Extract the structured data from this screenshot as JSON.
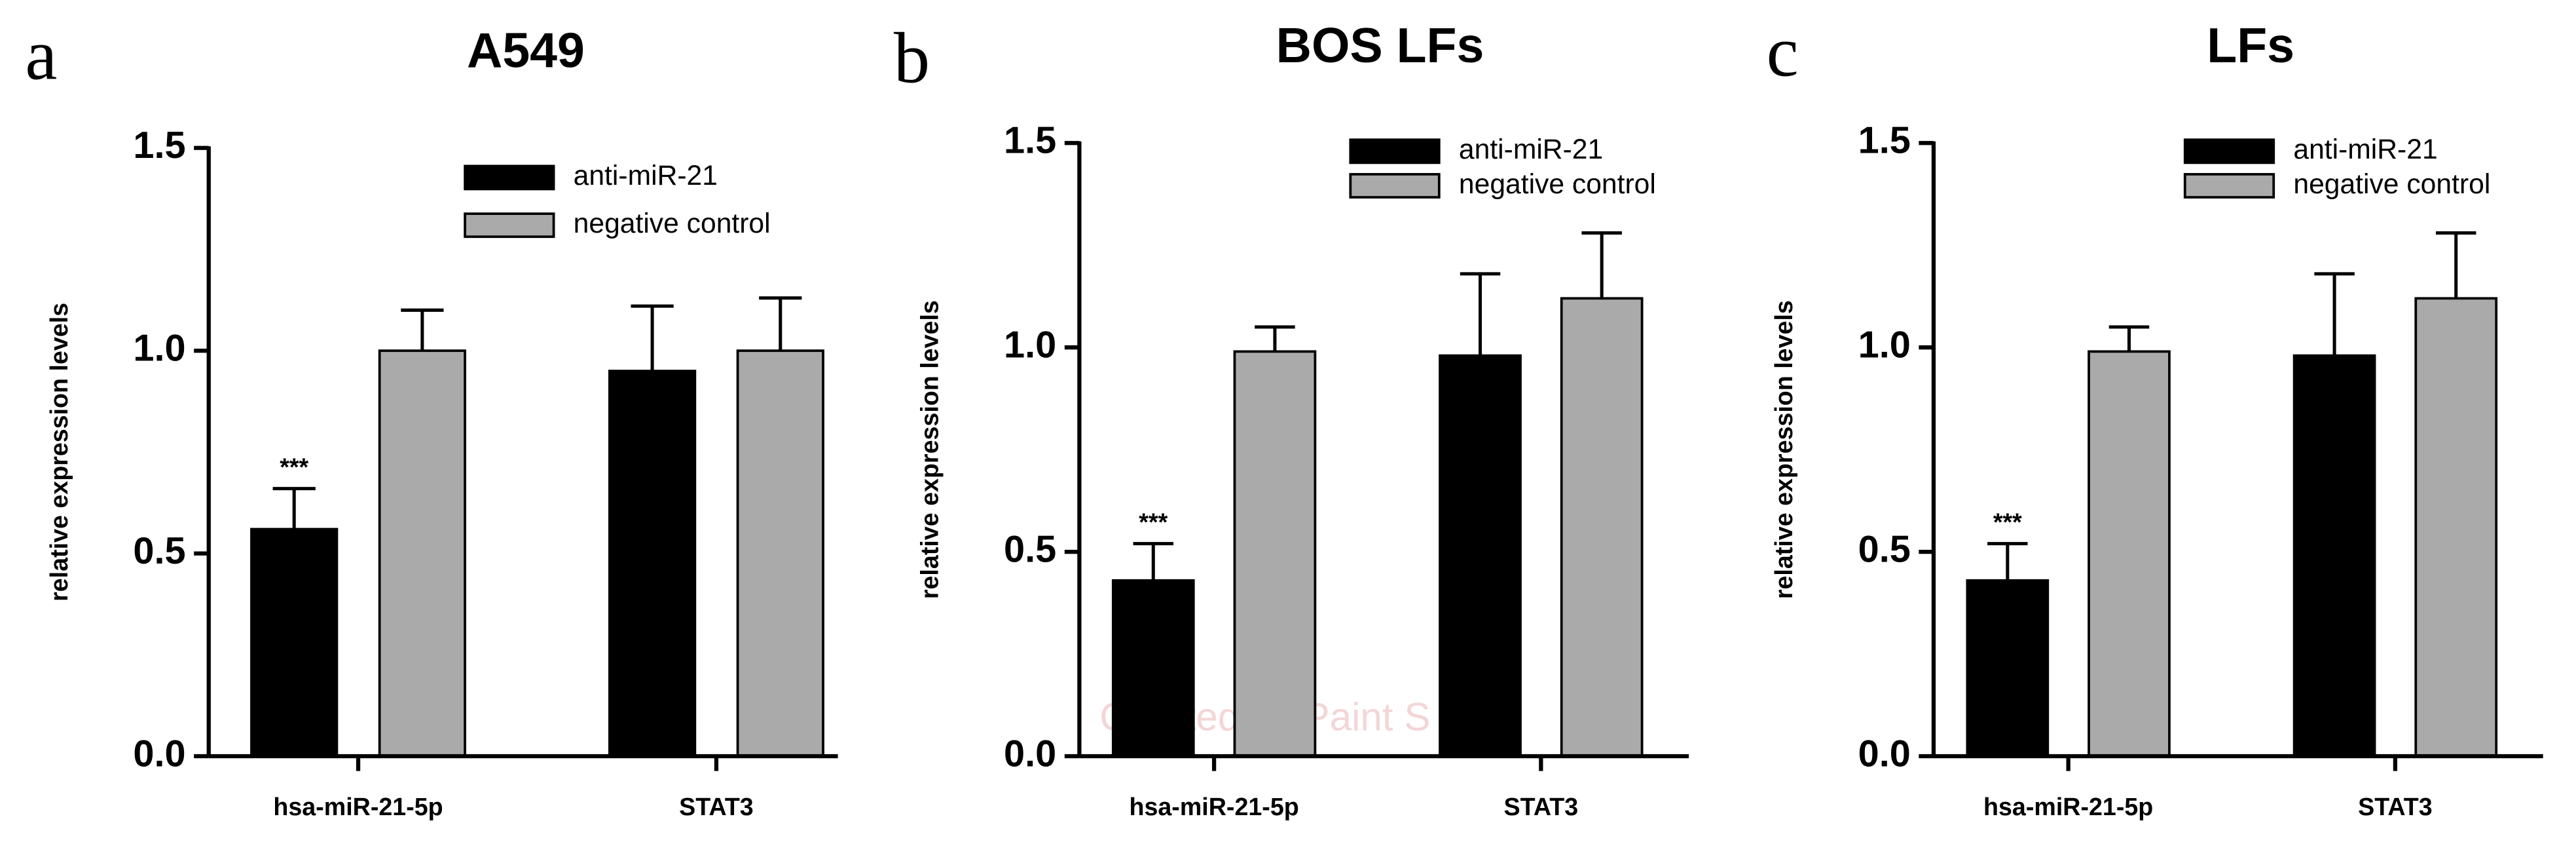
{
  "chart_data": [
    {
      "type": "bar",
      "panel": "a",
      "title": "A549",
      "ylabel": "relative expression levels",
      "categories": [
        "hsa-miR-21-5p",
        "STAT3"
      ],
      "series": [
        {
          "name": "anti-miR-21",
          "color": "#000000",
          "values": [
            0.56,
            0.95
          ],
          "errors": [
            0.1,
            0.16
          ],
          "annotations": [
            "***",
            null
          ]
        },
        {
          "name": "negative control",
          "color": "#aaaaaa",
          "values": [
            1.0,
            1.0
          ],
          "errors": [
            0.1,
            0.13
          ]
        }
      ],
      "ylim": [
        0,
        1.5
      ],
      "yticks": [
        {
          "value": 0,
          "label": "0.0"
        },
        {
          "value": 0.5,
          "label": "0.5"
        },
        {
          "value": 1,
          "label": "1.0"
        },
        {
          "value": 1.5,
          "label": "1.5"
        }
      ]
    },
    {
      "type": "bar",
      "panel": "b",
      "title": "BOS LFs",
      "ylabel": "relative expression levels",
      "watermark": "Created by Paint S",
      "categories": [
        "hsa-miR-21-5p",
        "STAT3"
      ],
      "series": [
        {
          "name": "anti-miR-21",
          "color": "#000000",
          "values": [
            0.43,
            0.98
          ],
          "errors": [
            0.09,
            0.2
          ],
          "annotations": [
            "***",
            null
          ]
        },
        {
          "name": "negative control",
          "color": "#aaaaaa",
          "values": [
            0.99,
            1.12
          ],
          "errors": [
            0.06,
            0.16
          ]
        }
      ],
      "ylim": [
        0,
        1.5
      ],
      "yticks": [
        {
          "value": 0,
          "label": "0.0"
        },
        {
          "value": 0.5,
          "label": "0.5"
        },
        {
          "value": 1,
          "label": "1.0"
        },
        {
          "value": 1.5,
          "label": "1.5"
        }
      ]
    },
    {
      "type": "bar",
      "panel": "c",
      "title": "LFs",
      "ylabel": "relative expression levels",
      "categories": [
        "hsa-miR-21-5p",
        "STAT3"
      ],
      "series": [
        {
          "name": "anti-miR-21",
          "color": "#000000",
          "values": [
            0.43,
            0.98
          ],
          "errors": [
            0.09,
            0.2
          ],
          "annotations": [
            "***",
            null
          ]
        },
        {
          "name": "negative control",
          "color": "#aaaaaa",
          "values": [
            0.99,
            1.12
          ],
          "errors": [
            0.06,
            0.16
          ]
        }
      ],
      "ylim": [
        0,
        1.5
      ],
      "yticks": [
        {
          "value": 0,
          "label": "0.0"
        },
        {
          "value": 0.5,
          "label": "0.5"
        },
        {
          "value": 1,
          "label": "1.0"
        },
        {
          "value": 1.5,
          "label": "1.5"
        }
      ]
    }
  ]
}
